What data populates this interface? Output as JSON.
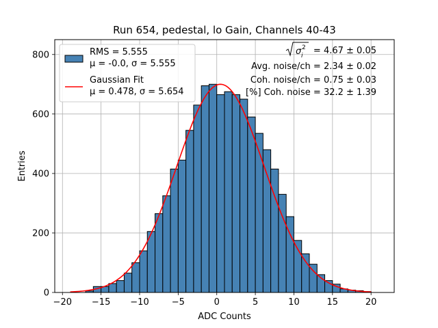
{
  "chart_data": {
    "type": "bar",
    "title": "Run 654, pedestal, lo Gain, Channels 40-43",
    "xlabel": "ADC Counts",
    "ylabel": "Entries",
    "xlim": [
      -21,
      23
    ],
    "ylim": [
      0,
      850
    ],
    "xticks": [
      -20,
      -15,
      -10,
      -5,
      0,
      5,
      10,
      15,
      20
    ],
    "yticks": [
      0,
      200,
      400,
      600,
      800
    ],
    "grid": true,
    "bin_edges": [
      -17,
      -16,
      -15,
      -14,
      -13,
      -12,
      -11,
      -10,
      -9,
      -8,
      -7,
      -6,
      -5,
      -4,
      -3,
      -2,
      -1,
      0,
      1,
      2,
      3,
      4,
      5,
      6,
      7,
      8,
      9,
      10,
      11,
      12,
      13,
      14,
      15,
      16,
      17,
      18,
      19,
      20
    ],
    "counts": [
      5,
      20,
      20,
      30,
      40,
      65,
      100,
      140,
      205,
      265,
      325,
      415,
      445,
      545,
      630,
      695,
      700,
      665,
      675,
      665,
      650,
      590,
      535,
      480,
      415,
      330,
      255,
      175,
      130,
      95,
      60,
      40,
      28,
      12,
      8,
      6,
      3
    ],
    "bar_color": "#4682b4",
    "fit_color": "#ff0000",
    "fit": {
      "mu": 0.478,
      "sigma": 5.654,
      "amplitude": 700,
      "x_range": [
        -19,
        20
      ]
    },
    "legend": [
      {
        "label_line1": "RMS = 5.555",
        "label_line2": "μ = -0.0, σ = 5.555",
        "marker": "bar"
      },
      {
        "label_line1": "Gaussian Fit",
        "label_line2": "μ = 0.478, σ = 5.654",
        "marker": "line"
      }
    ],
    "legend_position": "top-left",
    "annotations": {
      "sqrt_value": "= 4.67 ± 0.05",
      "avg_noise": "Avg. noise/ch = 2.34 ± 0.02",
      "coh_noise": "Coh. noise/ch = 0.75 ± 0.03",
      "pct_coh_noise": "[%] Coh. noise = 32.2 ± 1.39"
    }
  }
}
